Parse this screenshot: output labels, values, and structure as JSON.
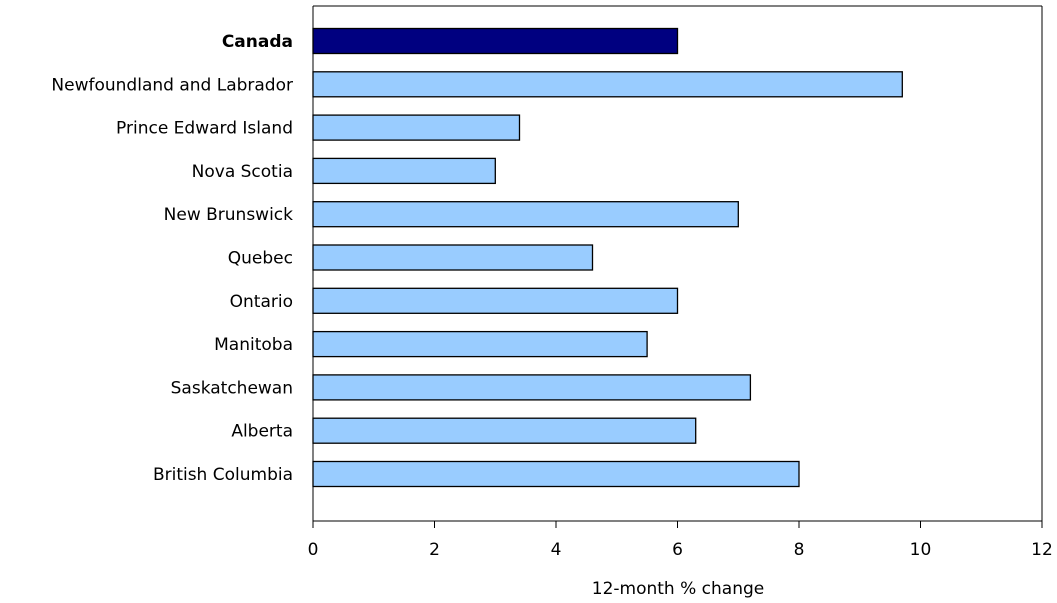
{
  "chart_data": {
    "type": "bar",
    "orientation": "horizontal",
    "title": "",
    "xlabel": "12-month % change",
    "ylabel": "",
    "xlim": [
      0,
      12
    ],
    "xticks": [
      0,
      2,
      4,
      6,
      8,
      10,
      12
    ],
    "grid": false,
    "legend": "none",
    "categories": [
      "Canada",
      "Newfoundland and Labrador",
      "Prince Edward Island",
      "Nova Scotia",
      "New Brunswick",
      "Quebec",
      "Ontario",
      "Manitoba",
      "Saskatchewan",
      "Alberta",
      "British Columbia"
    ],
    "values": [
      6.0,
      9.7,
      3.4,
      3.0,
      7.0,
      4.6,
      6.0,
      5.5,
      7.2,
      6.3,
      8.0
    ],
    "highlight_category": "Canada",
    "colors": {
      "highlight": "#000080",
      "bar": "#99ccff",
      "stroke": "#000000"
    }
  }
}
